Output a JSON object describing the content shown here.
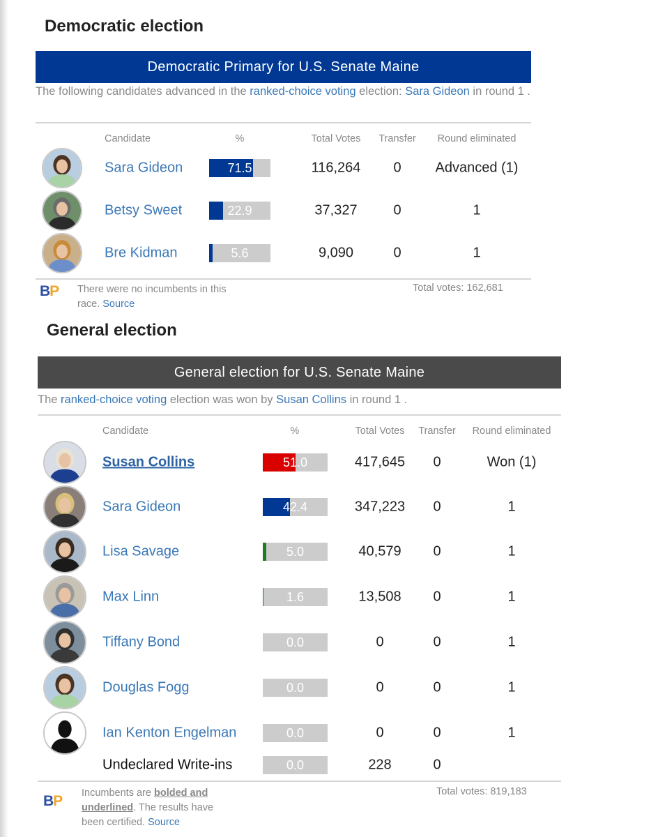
{
  "primary": {
    "section_title": "Democratic election",
    "race_title": "Democratic Primary for U.S. Senate Maine",
    "header_color": "#003893",
    "description": {
      "pre": "The following candidates advanced in the ",
      "link": "ranked-choice voting",
      "mid": " election: ",
      "winner": "Sara Gideon",
      "post": " in round 1 ."
    },
    "columns": {
      "candidate": "Candidate",
      "percent": "%",
      "votes": "Total Votes",
      "transfer": "Transfer",
      "round": "Round eliminated"
    },
    "candidates": [
      {
        "name": "Sara Gideon",
        "pct": "71.5",
        "pct_value": 71.5,
        "color": "#003893",
        "votes": "116,264",
        "transfer": "0",
        "round": "Advanced (1)",
        "avatar": "photo-sara-gideon-icon"
      },
      {
        "name": "Betsy Sweet",
        "pct": "22.9",
        "pct_value": 22.9,
        "color": "#003893",
        "votes": "37,327",
        "transfer": "0",
        "round": "1",
        "avatar": "photo-betsy-sweet-icon"
      },
      {
        "name": "Bre Kidman",
        "pct": "5.6",
        "pct_value": 5.6,
        "color": "#003893",
        "votes": "9,090",
        "transfer": "0",
        "round": "1",
        "avatar": "photo-bre-kidman-icon"
      }
    ],
    "footer": {
      "logo_b": "B",
      "logo_p": "P",
      "note": "There were no incumbents in this race. ",
      "source": "Source",
      "total": "Total votes: 162,681"
    }
  },
  "general": {
    "section_title": "General election",
    "race_title": "General election for U.S. Senate Maine",
    "header_color": "#4a4a4a",
    "description": {
      "pre": "The ",
      "link": "ranked-choice voting",
      "mid": " election was won by ",
      "winner": "Susan Collins",
      "post": " in round 1 ."
    },
    "columns": {
      "candidate": "Candidate",
      "percent": "%",
      "votes": "Total Votes",
      "transfer": "Transfer",
      "round": "Round eliminated"
    },
    "candidates": [
      {
        "name": "Susan Collins",
        "incumbent": true,
        "pct": "51.0",
        "pct_value": 51.0,
        "color": "#d90000",
        "votes": "417,645",
        "transfer": "0",
        "round": "Won (1)",
        "avatar": "photo-susan-collins-icon"
      },
      {
        "name": "Sara Gideon",
        "pct": "42.4",
        "pct_value": 42.4,
        "color": "#003893",
        "votes": "347,223",
        "transfer": "0",
        "round": "1",
        "avatar": "photo-sara-gideon-icon"
      },
      {
        "name": "Lisa Savage",
        "pct": "5.0",
        "pct_value": 5.0,
        "color": "#1e7d1e",
        "votes": "40,579",
        "transfer": "0",
        "round": "1",
        "avatar": "photo-lisa-savage-icon"
      },
      {
        "name": "Max Linn",
        "pct": "1.6",
        "pct_value": 1.6,
        "color": "#1e7d1e",
        "votes": "13,508",
        "transfer": "0",
        "round": "1",
        "avatar": "photo-max-linn-icon"
      },
      {
        "name": "Tiffany Bond",
        "pct": "0.0",
        "pct_value": 0.0,
        "color": "#888888",
        "votes": "0",
        "transfer": "0",
        "round": "1",
        "avatar": "photo-tiffany-bond-icon"
      },
      {
        "name": "Douglas Fogg",
        "pct": "0.0",
        "pct_value": 0.0,
        "color": "#888888",
        "votes": "0",
        "transfer": "0",
        "round": "1",
        "avatar": "photo-douglas-fogg-icon"
      },
      {
        "name": "Ian Kenton Engelman",
        "pct": "0.0",
        "pct_value": 0.0,
        "color": "#888888",
        "votes": "0",
        "transfer": "0",
        "round": "1",
        "avatar": "silhouette-placeholder-icon"
      },
      {
        "name": "Undeclared Write-ins",
        "write_in": true,
        "pct": "0.0",
        "pct_value": 0.0,
        "color": "#888888",
        "votes": "228",
        "transfer": "0",
        "round": ""
      }
    ],
    "footer": {
      "logo_b": "B",
      "logo_p": "P",
      "note_pre": "Incumbents are ",
      "note_bold": "bolded and underlined",
      "note_post": ". The results have been certified. ",
      "source": "Source",
      "total": "Total votes: 819,183"
    }
  }
}
